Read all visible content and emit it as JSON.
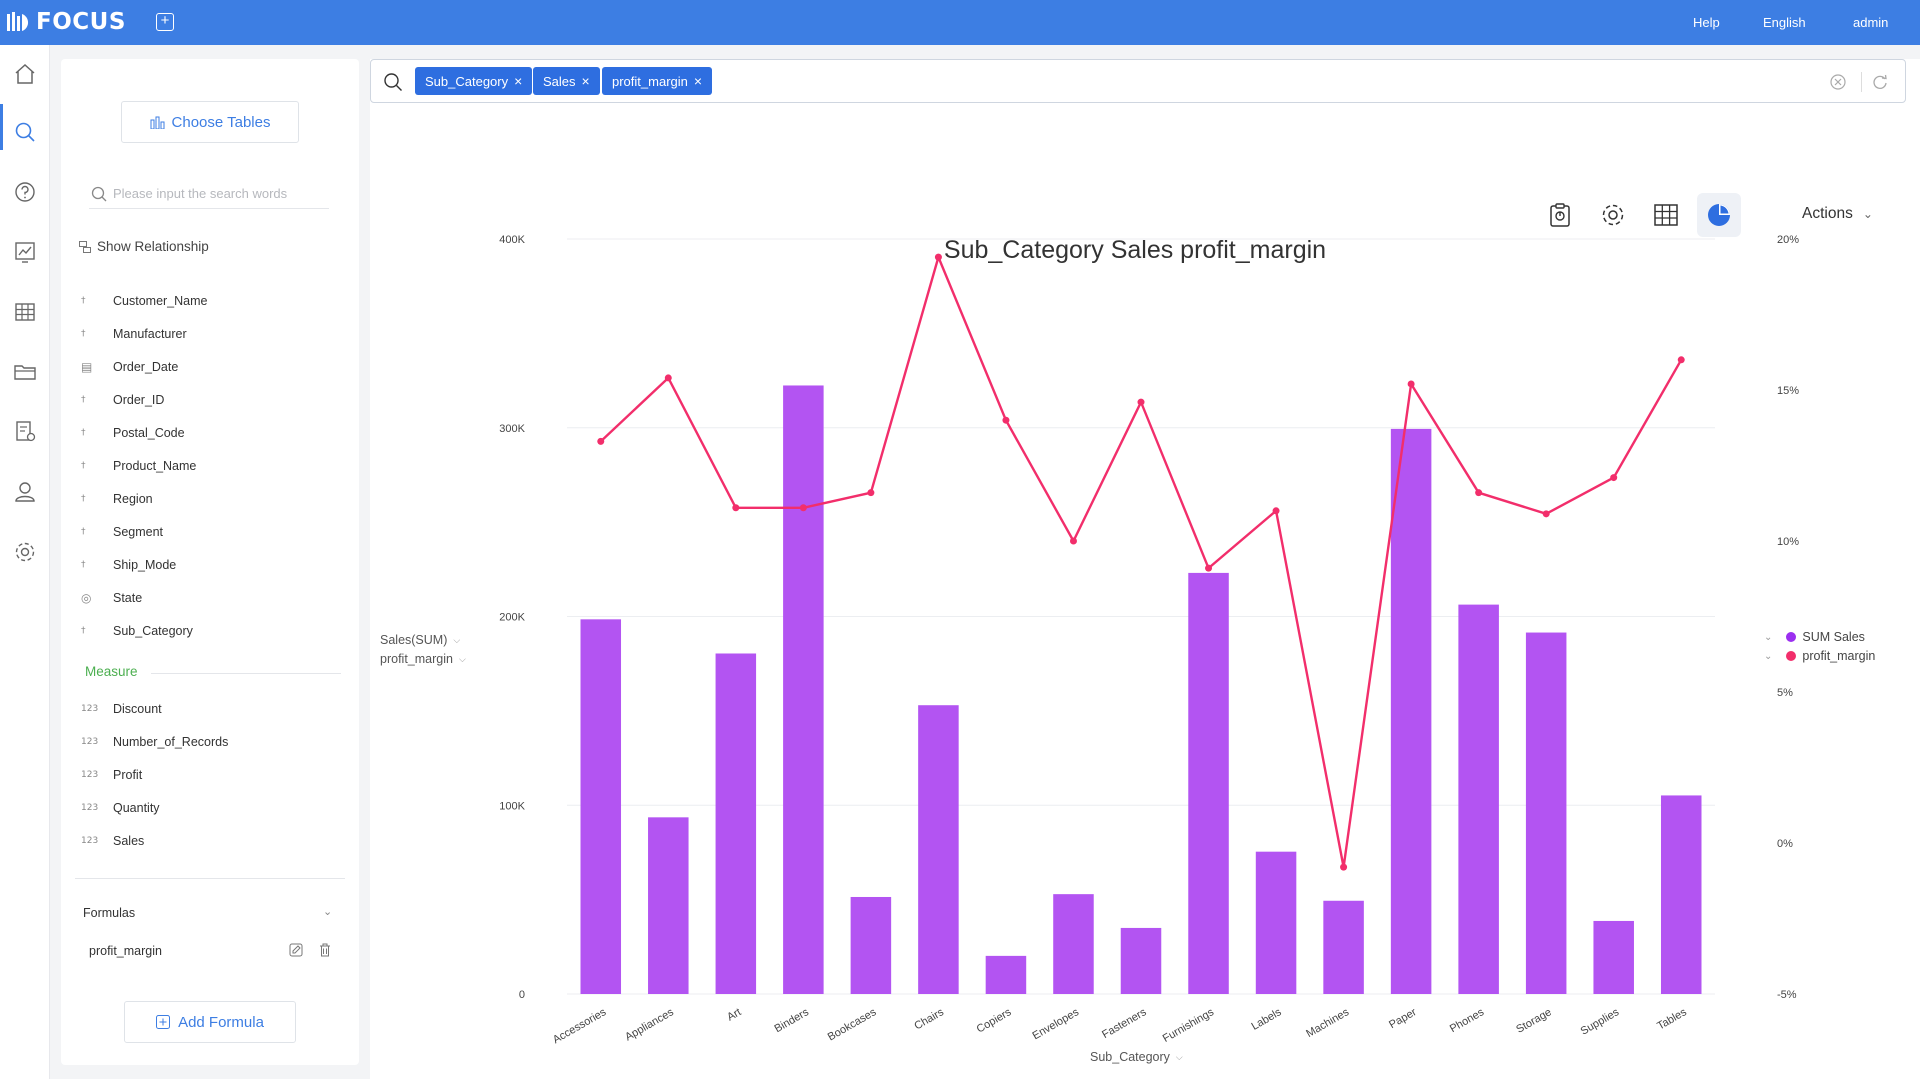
{
  "app": {
    "name": "FOCUS"
  },
  "header": {
    "help": "Help",
    "language": "English",
    "user": "admin"
  },
  "left_panel": {
    "choose_tables": "Choose Tables",
    "search_placeholder": "Please input the search words",
    "show_relationship": "Show Relationship",
    "dimensions": [
      {
        "label": "Customer_Name",
        "icon": "text-icon"
      },
      {
        "label": "Manufacturer",
        "icon": "text-icon"
      },
      {
        "label": "Order_Date",
        "icon": "calendar-icon"
      },
      {
        "label": "Order_ID",
        "icon": "text-icon"
      },
      {
        "label": "Postal_Code",
        "icon": "text-icon"
      },
      {
        "label": "Product_Name",
        "icon": "text-icon"
      },
      {
        "label": "Region",
        "icon": "text-icon"
      },
      {
        "label": "Segment",
        "icon": "text-icon"
      },
      {
        "label": "Ship_Mode",
        "icon": "text-icon"
      },
      {
        "label": "State",
        "icon": "globe-icon"
      },
      {
        "label": "Sub_Category",
        "icon": "text-icon"
      }
    ],
    "measure_title": "Measure",
    "measures": [
      {
        "label": "Discount",
        "icon": "123"
      },
      {
        "label": "Number_of_Records",
        "icon": "123"
      },
      {
        "label": "Profit",
        "icon": "123"
      },
      {
        "label": "Quantity",
        "icon": "123"
      },
      {
        "label": "Sales",
        "icon": "123"
      }
    ],
    "formulas_title": "Formulas",
    "formulas": [
      "profit_margin"
    ],
    "add_formula": "Add Formula"
  },
  "search": {
    "tags": [
      "Sub_Category",
      "Sales",
      "profit_margin"
    ]
  },
  "toolbar": {
    "actions": "Actions"
  },
  "chart_data": {
    "type": "bar",
    "title": "Sub_Category Sales profit_margin",
    "xlabel": "Sub_Category",
    "ylabel": "Sales(SUM)",
    "y2label": "profit_margin",
    "categories": [
      "Accessories",
      "Appliances",
      "Art",
      "Binders",
      "Bookcases",
      "Chairs",
      "Copiers",
      "Envelopes",
      "Fasteners",
      "Furnishings",
      "Labels",
      "Machines",
      "Paper",
      "Phones",
      "Storage",
      "Supplies",
      "Tables"
    ],
    "ylim": [
      0,
      400000
    ],
    "yticks": [
      "0",
      "100K",
      "200K",
      "300K",
      "400K"
    ],
    "y2lim": [
      -5,
      20
    ],
    "y2ticks": [
      "-5%",
      "0%",
      "5%",
      "10%",
      "15%",
      "20%"
    ],
    "series": [
      {
        "name": "SUM Sales",
        "type": "bar",
        "axis": "left",
        "color": "#b354f2",
        "values": [
          198500,
          93600,
          180400,
          322400,
          51400,
          153000,
          20200,
          52900,
          35000,
          223100,
          75400,
          49400,
          299400,
          206300,
          191500,
          38700,
          105200
        ]
      },
      {
        "name": "profit_margin",
        "type": "line",
        "axis": "right",
        "color": "#f22e6b",
        "values": [
          13.3,
          15.4,
          11.1,
          11.1,
          11.6,
          19.4,
          14.0,
          10.0,
          14.6,
          9.1,
          11.0,
          -0.8,
          15.2,
          11.6,
          10.9,
          12.1,
          16.0
        ]
      }
    ],
    "legend": "right",
    "grid": true
  }
}
